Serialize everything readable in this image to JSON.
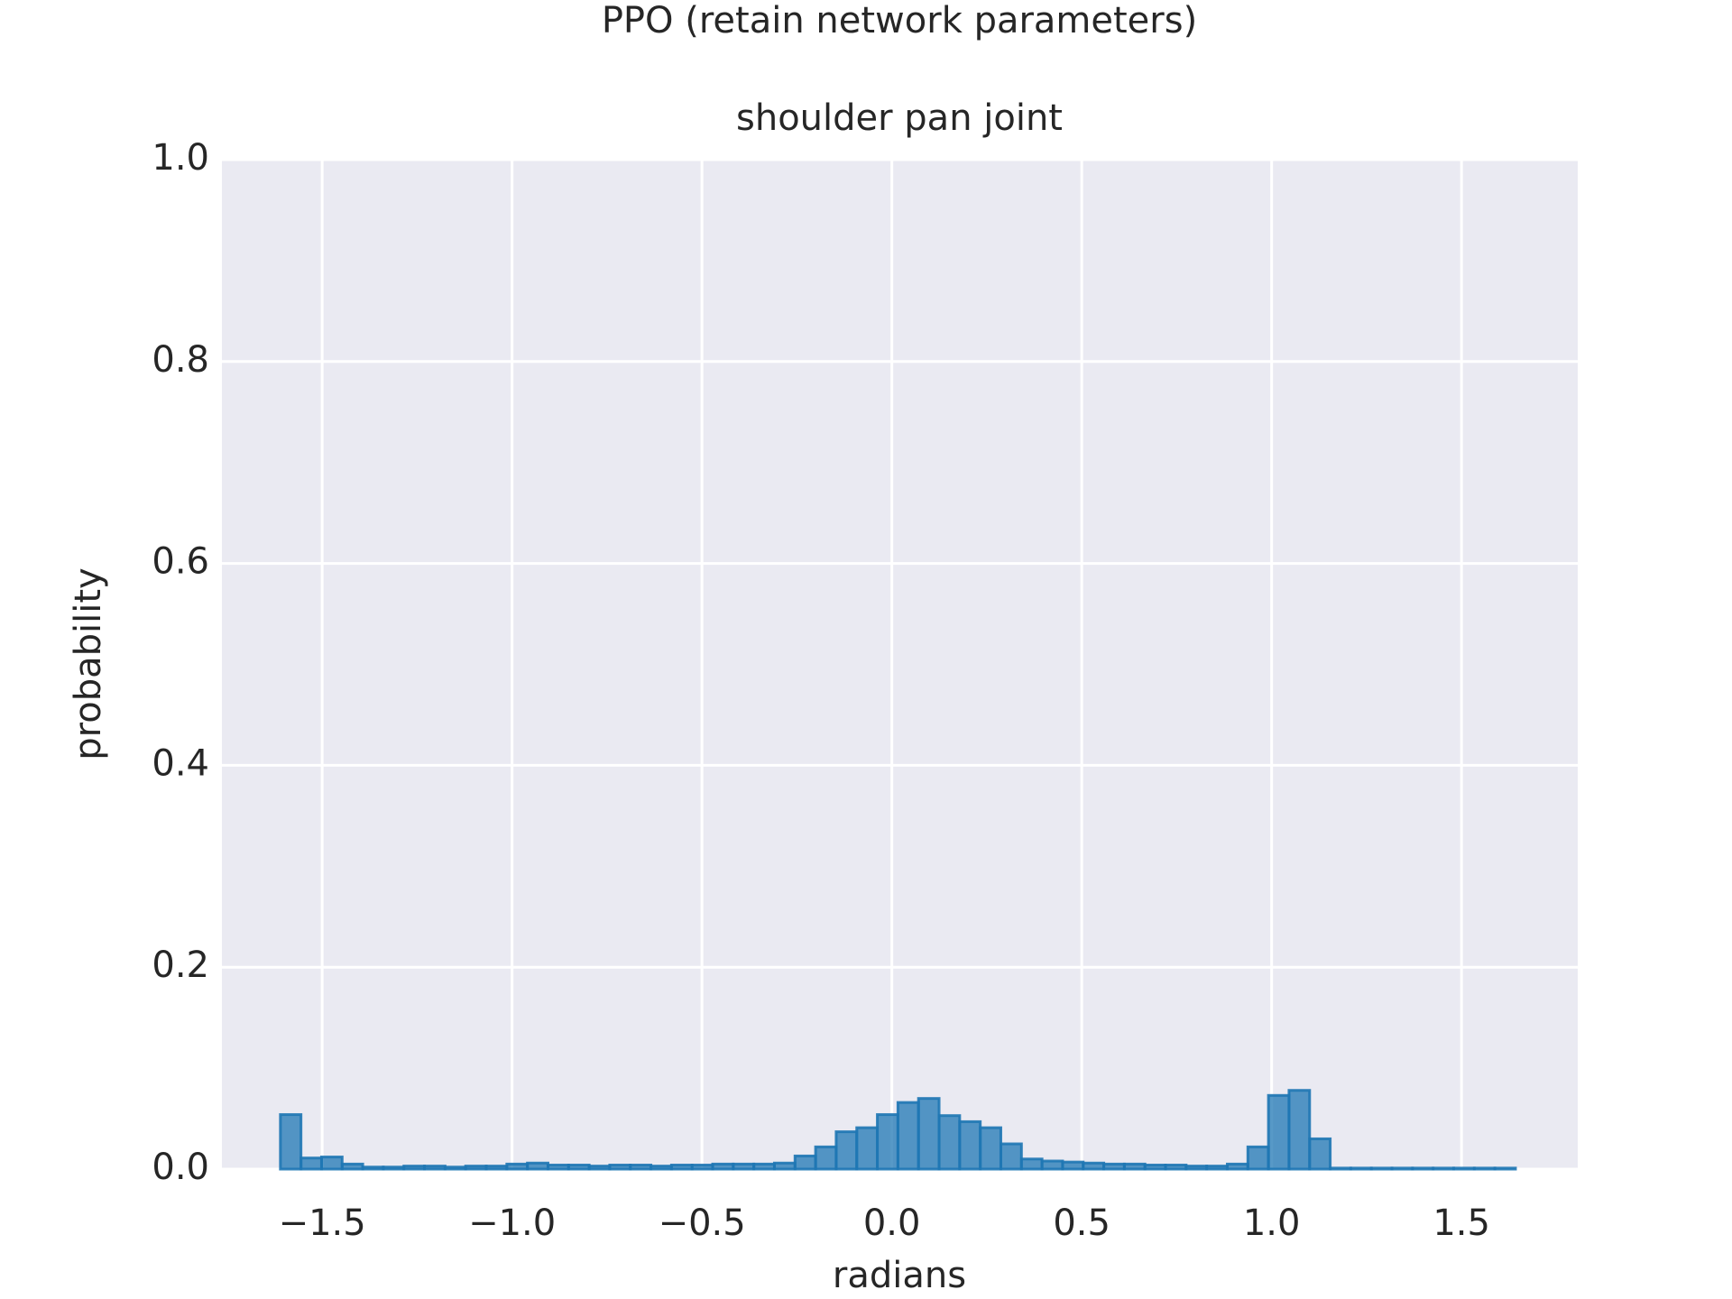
{
  "chart_data": {
    "type": "histogram",
    "title": "PPO (retain network parameters)",
    "subtitle": "shoulder pan joint",
    "x_label": "radians",
    "y_label": "probability",
    "color": "#1f77b4",
    "grid": true,
    "bins": [
      -1.61,
      -1.5558,
      -1.5016,
      -1.4474,
      -1.3932,
      -1.339,
      -1.2848,
      -1.2306,
      -1.1764,
      -1.1222,
      -1.068,
      -1.0138,
      -0.9596,
      -0.9054,
      -0.8512,
      -0.797,
      -0.7428,
      -0.6886,
      -0.6344,
      -0.5802,
      -0.526,
      -0.4718,
      -0.4176,
      -0.3634,
      -0.3092,
      -0.255,
      -0.2008,
      -0.1466,
      -0.0924,
      -0.0382,
      0.016,
      0.0702,
      0.1244,
      0.1786,
      0.2328,
      0.287,
      0.3412,
      0.3954,
      0.4496,
      0.5038,
      0.558,
      0.6122,
      0.6664,
      0.7206,
      0.7748,
      0.829,
      0.8832,
      0.9374,
      0.9916,
      1.0458,
      1.1,
      1.1542,
      1.2084,
      1.2626,
      1.3168,
      1.371,
      1.4252,
      1.4794,
      1.5336,
      1.5878,
      1.642
    ],
    "values": [
      0.054,
      0.011,
      0.012,
      0.005,
      0.002,
      0.002,
      0.003,
      0.003,
      0.002,
      0.003,
      0.003,
      0.005,
      0.006,
      0.004,
      0.004,
      0.003,
      0.004,
      0.004,
      0.003,
      0.004,
      0.004,
      0.005,
      0.005,
      0.005,
      0.006,
      0.013,
      0.022,
      0.037,
      0.041,
      0.054,
      0.066,
      0.07,
      0.053,
      0.047,
      0.041,
      0.025,
      0.01,
      0.008,
      0.007,
      0.006,
      0.005,
      0.005,
      0.004,
      0.004,
      0.003,
      0.003,
      0.005,
      0.022,
      0.073,
      0.078,
      0.03,
      0.001,
      0.001,
      0.001,
      0.001,
      0.001,
      0.001,
      0.001,
      0.001,
      0.001
    ],
    "xlim": [
      -1.764,
      1.806
    ],
    "ylim": [
      0,
      1
    ],
    "xticks": [
      {
        "value": -1.5,
        "label": "−1.5"
      },
      {
        "value": -1.0,
        "label": "−1.0"
      },
      {
        "value": -0.5,
        "label": "−0.5"
      },
      {
        "value": 0,
        "label": "0.0"
      },
      0.5,
      {
        "value": 1.0,
        "label": "1.0"
      },
      1.5
    ],
    "yticks": [
      {
        "value": 0,
        "label": "0.0"
      },
      0.2,
      0.4,
      0.6,
      0.8,
      {
        "value": 1,
        "label": "1.0"
      }
    ]
  }
}
